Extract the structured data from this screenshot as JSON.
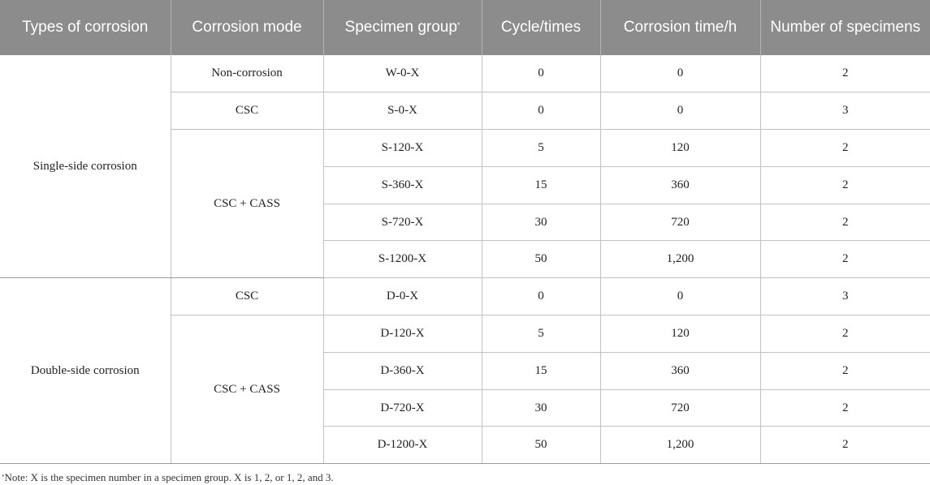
{
  "table": {
    "headers": {
      "type": "Types of corrosion",
      "mode": "Corrosion mode",
      "group": "Specimen group",
      "group_marker": "*",
      "cycle": "Cycle/times",
      "time": "Corrosion time/h",
      "count": "Number of specimens"
    },
    "types": [
      "Single-side corrosion",
      "Double-side corrosion"
    ],
    "modes": [
      "Non-corrosion",
      "CSC",
      "CSC + CASS",
      "CSC",
      "CSC + CASS"
    ],
    "rows": [
      {
        "group": "W-0-X",
        "cycle": "0",
        "time": "0",
        "count": "2"
      },
      {
        "group": "S-0-X",
        "cycle": "0",
        "time": "0",
        "count": "3"
      },
      {
        "group": "S-120-X",
        "cycle": "5",
        "time": "120",
        "count": "2"
      },
      {
        "group": "S-360-X",
        "cycle": "15",
        "time": "360",
        "count": "2"
      },
      {
        "group": "S-720-X",
        "cycle": "30",
        "time": "720",
        "count": "2"
      },
      {
        "group": "S-1200-X",
        "cycle": "50",
        "time": "1,200",
        "count": "2"
      },
      {
        "group": "D-0-X",
        "cycle": "0",
        "time": "0",
        "count": "3"
      },
      {
        "group": "D-120-X",
        "cycle": "5",
        "time": "120",
        "count": "2"
      },
      {
        "group": "D-360-X",
        "cycle": "15",
        "time": "360",
        "count": "2"
      },
      {
        "group": "D-720-X",
        "cycle": "30",
        "time": "720",
        "count": "2"
      },
      {
        "group": "D-1200-X",
        "cycle": "50",
        "time": "1,200",
        "count": "2"
      }
    ]
  },
  "note": {
    "marker": "*",
    "text": "Note: X is the specimen number in a specimen group. X is 1, 2, or 1, 2, and 3."
  }
}
